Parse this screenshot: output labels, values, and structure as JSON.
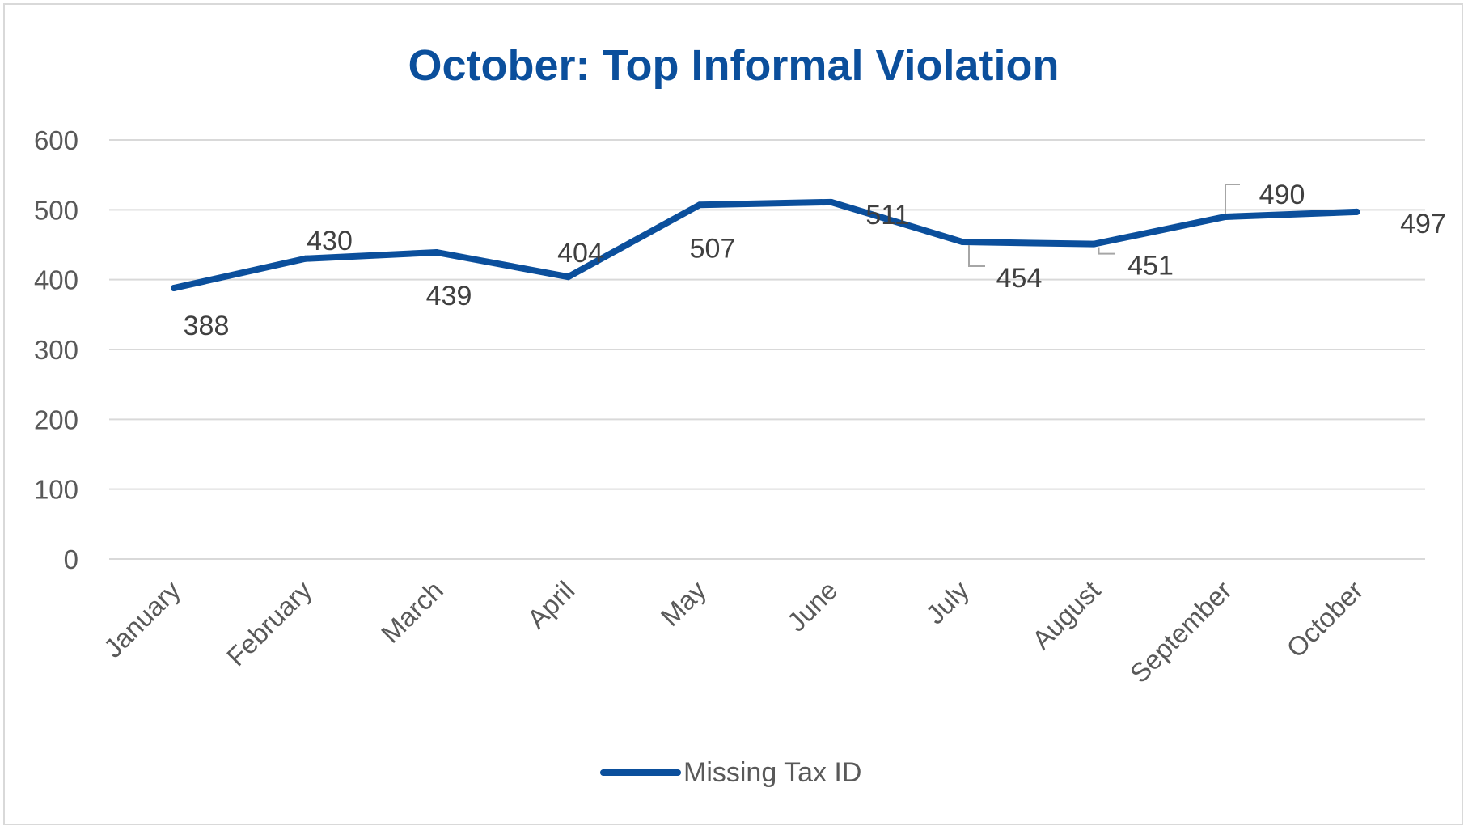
{
  "chart_data": {
    "type": "line",
    "title": "October: Top Informal Violation",
    "xlabel": "",
    "ylabel": "",
    "categories": [
      "January",
      "February",
      "March",
      "April",
      "May",
      "June",
      "July",
      "August",
      "September",
      "October"
    ],
    "series": [
      {
        "name": "Missing Tax ID",
        "values": [
          388,
          430,
          439,
          404,
          507,
          511,
          454,
          451,
          490,
          497
        ]
      }
    ],
    "yticks": [
      "0",
      "100",
      "200",
      "300",
      "400",
      "500",
      "600"
    ],
    "ylim": [
      0,
      600
    ],
    "grid": "horizontal",
    "legend": "bottom",
    "data_labels": [
      "388",
      "430",
      "439",
      "404",
      "507",
      "511",
      "454",
      "451",
      "490",
      "497"
    ],
    "colors": {
      "series": "#0b4f9c",
      "title": "#0b4f9c",
      "grid": "#d9d9d9",
      "leader": "#a6a6a6"
    }
  }
}
